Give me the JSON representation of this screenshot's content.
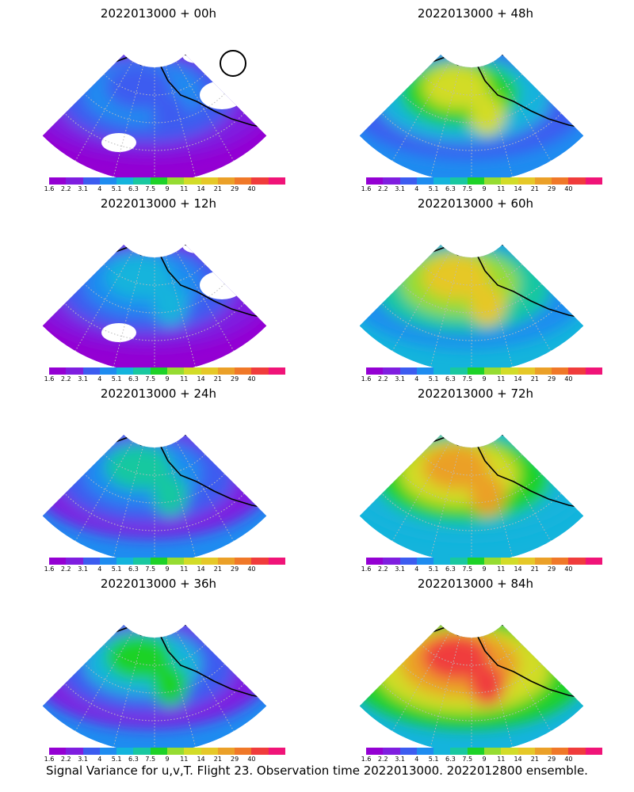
{
  "panels": [
    {
      "title": "2022013000 + 00h",
      "intensity": 0.1,
      "missing": true
    },
    {
      "title": "2022013000 + 48h",
      "intensity": 0.55,
      "missing": false
    },
    {
      "title": "2022013000 + 12h",
      "intensity": 0.22,
      "missing": true
    },
    {
      "title": "2022013000 + 60h",
      "intensity": 0.65,
      "missing": false
    },
    {
      "title": "2022013000 + 24h",
      "intensity": 0.33,
      "missing": false
    },
    {
      "title": "2022013000 + 72h",
      "intensity": 0.78,
      "missing": false
    },
    {
      "title": "2022013000 + 36h",
      "intensity": 0.44,
      "missing": false
    },
    {
      "title": "2022013000 + 84h",
      "intensity": 0.9,
      "missing": false
    }
  ],
  "colorbar": {
    "colors": [
      "#9400d3",
      "#7f1ee0",
      "#3c5cf0",
      "#1e8cf0",
      "#14b4dc",
      "#19c8a0",
      "#1ed228",
      "#96dc32",
      "#d2dc28",
      "#e6c828",
      "#eba028",
      "#f07828",
      "#f03c3c",
      "#f01478"
    ],
    "ticks": [
      "1.6",
      "2.2",
      "3.1",
      "4",
      "5.1",
      "6.3",
      "7.5",
      "9",
      "11",
      "14",
      "21",
      "29",
      "40"
    ]
  },
  "caption": "Signal Variance for u,v,T. Flight 23. Observation time 2022013000. 2022012800 ensemble."
}
